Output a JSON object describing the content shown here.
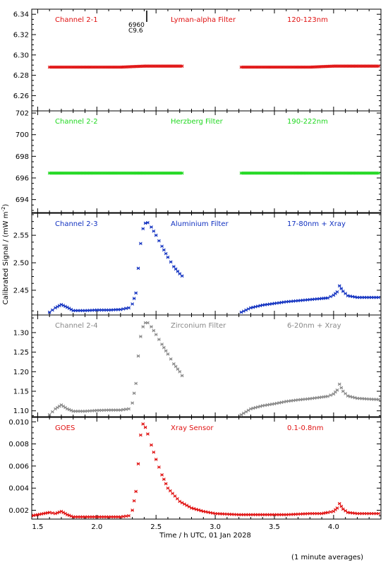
{
  "figure": {
    "ylabel": "Calibrated Signal / (mW m",
    "ylabel_sup": "-2",
    "ylabel_tail": ")",
    "xlabel": "Time / h UTC, 01 Jan 2028",
    "footnote": "(1 minute averages)",
    "event_number": "6960",
    "event_class": "C9.6"
  },
  "chart_data": [
    {
      "type": "scatter",
      "channel": "Channel 2-1",
      "filter": "Lyman-alpha Filter",
      "band": "120-123nm",
      "color": "#e01010",
      "ylim": [
        6.245,
        6.345
      ],
      "yticks": [
        6.26,
        6.28,
        6.3,
        6.32,
        6.34
      ],
      "ytick_labels": [
        "6.26",
        "6.28",
        "6.30",
        "6.32",
        "6.34"
      ],
      "xlim": [
        1.45,
        4.4
      ],
      "segments": [
        {
          "x": [
            1.6,
            1.8,
            2.0,
            2.2,
            2.4,
            2.6,
            2.72
          ],
          "y": [
            6.288,
            6.288,
            6.288,
            6.288,
            6.289,
            6.289,
            6.289
          ]
        },
        {
          "x": [
            3.22,
            3.4,
            3.6,
            3.8,
            4.0,
            4.2,
            4.38
          ],
          "y": [
            6.288,
            6.288,
            6.288,
            6.288,
            6.289,
            6.289,
            6.289
          ]
        }
      ]
    },
    {
      "type": "scatter",
      "channel": "Channel 2-2",
      "filter": "Herzberg Filter",
      "band": "190-222nm",
      "color": "#20d820",
      "ylim": [
        692.8,
        702.2
      ],
      "yticks": [
        694,
        696,
        698,
        700,
        702
      ],
      "ytick_labels": [
        "694",
        "696",
        "698",
        "700",
        "702"
      ],
      "xlim": [
        1.45,
        4.4
      ],
      "segments": [
        {
          "x": [
            1.6,
            1.8,
            2.0,
            2.2,
            2.4,
            2.6,
            2.72
          ],
          "y": [
            696.45,
            696.45,
            696.45,
            696.45,
            696.45,
            696.45,
            696.45
          ]
        },
        {
          "x": [
            3.22,
            3.4,
            3.6,
            3.8,
            4.0,
            4.2,
            4.38
          ],
          "y": [
            696.45,
            696.45,
            696.45,
            696.45,
            696.45,
            696.45,
            696.45
          ]
        }
      ]
    },
    {
      "type": "scatter",
      "channel": "Channel 2-3",
      "filter": "Aluminium Filter",
      "band": "17-80nm + Xray",
      "color": "#1030c0",
      "ylim": [
        2.405,
        2.59
      ],
      "yticks": [
        2.45,
        2.5,
        2.55
      ],
      "ytick_labels": [
        "2.45",
        "2.50",
        "2.55"
      ],
      "xlim": [
        1.45,
        4.4
      ],
      "segments": [
        {
          "x": [
            1.6,
            1.65,
            1.7,
            1.75,
            1.8,
            1.9,
            2.0,
            2.1,
            2.2,
            2.27,
            2.3,
            2.33,
            2.35,
            2.37,
            2.39,
            2.41,
            2.43,
            2.46,
            2.5,
            2.55,
            2.6,
            2.65,
            2.7,
            2.72
          ],
          "y": [
            2.41,
            2.418,
            2.424,
            2.419,
            2.413,
            2.413,
            2.414,
            2.414,
            2.415,
            2.418,
            2.425,
            2.445,
            2.49,
            2.535,
            2.562,
            2.572,
            2.573,
            2.565,
            2.55,
            2.53,
            2.51,
            2.493,
            2.48,
            2.476
          ]
        },
        {
          "x": [
            3.22,
            3.3,
            3.4,
            3.5,
            3.6,
            3.7,
            3.8,
            3.9,
            3.95,
            4.0,
            4.03,
            4.05,
            4.08,
            4.12,
            4.2,
            4.3,
            4.38
          ],
          "y": [
            2.41,
            2.418,
            2.423,
            2.426,
            2.429,
            2.431,
            2.433,
            2.435,
            2.436,
            2.441,
            2.447,
            2.458,
            2.448,
            2.44,
            2.437,
            2.437,
            2.437
          ]
        }
      ]
    },
    {
      "type": "scatter",
      "channel": "Channel 2-4",
      "filter": "Zirconium Filter",
      "band": "6-20nm + Xray",
      "color": "#888888",
      "ylim": [
        1.085,
        1.345
      ],
      "yticks": [
        1.1,
        1.15,
        1.2,
        1.25,
        1.3
      ],
      "ytick_labels": [
        "1.10",
        "1.15",
        "1.20",
        "1.25",
        "1.30"
      ],
      "xlim": [
        1.45,
        4.4
      ],
      "segments": [
        {
          "x": [
            1.6,
            1.65,
            1.7,
            1.75,
            1.8,
            1.9,
            2.0,
            2.1,
            2.2,
            2.27,
            2.3,
            2.33,
            2.35,
            2.37,
            2.39,
            2.41,
            2.43,
            2.46,
            2.5,
            2.55,
            2.6,
            2.65,
            2.7,
            2.72
          ],
          "y": [
            1.09,
            1.105,
            1.115,
            1.105,
            1.099,
            1.099,
            1.101,
            1.102,
            1.102,
            1.105,
            1.12,
            1.17,
            1.24,
            1.29,
            1.315,
            1.325,
            1.325,
            1.315,
            1.295,
            1.27,
            1.245,
            1.22,
            1.2,
            1.19
          ]
        },
        {
          "x": [
            3.22,
            3.3,
            3.4,
            3.5,
            3.6,
            3.7,
            3.8,
            3.9,
            3.95,
            4.0,
            4.03,
            4.05,
            4.08,
            4.12,
            4.2,
            4.3,
            4.38
          ],
          "y": [
            1.09,
            1.105,
            1.113,
            1.118,
            1.124,
            1.128,
            1.131,
            1.135,
            1.137,
            1.143,
            1.153,
            1.168,
            1.15,
            1.138,
            1.132,
            1.13,
            1.129
          ]
        }
      ]
    },
    {
      "type": "scatter",
      "channel": "GOES",
      "filter": "Xray Sensor",
      "band": "0.1-0.8nm",
      "color": "#e01010",
      "ylim": [
        0.0012,
        0.0104
      ],
      "yticks": [
        0.002,
        0.004,
        0.006,
        0.008,
        0.01
      ],
      "ytick_labels": [
        "0.002",
        "0.004",
        "0.006",
        "0.008",
        "0.010"
      ],
      "xlim": [
        1.45,
        4.4
      ],
      "xticks": [
        1.5,
        2.0,
        2.5,
        3.0,
        3.5,
        4.0
      ],
      "xtick_labels": [
        "1.5",
        "2.0",
        "2.5",
        "3.0",
        "3.5",
        "4.0"
      ],
      "segments": [
        {
          "x": [
            1.45,
            1.5,
            1.55,
            1.6,
            1.65,
            1.7,
            1.75,
            1.8,
            1.9,
            2.0,
            2.1,
            2.2,
            2.27,
            2.3,
            2.33,
            2.35,
            2.37,
            2.39,
            2.41,
            2.43,
            2.46,
            2.5,
            2.55,
            2.6,
            2.7,
            2.8,
            2.9,
            3.0,
            3.2,
            3.4,
            3.6,
            3.8,
            3.9,
            3.95,
            4.0,
            4.03,
            4.05,
            4.08,
            4.12,
            4.2,
            4.3,
            4.38
          ],
          "y": [
            0.0015,
            0.0016,
            0.0017,
            0.0018,
            0.0017,
            0.0019,
            0.0016,
            0.0014,
            0.0014,
            0.0014,
            0.0014,
            0.0014,
            0.0015,
            0.002,
            0.0037,
            0.0062,
            0.0088,
            0.0098,
            0.0095,
            0.0089,
            0.0079,
            0.0066,
            0.0052,
            0.004,
            0.0028,
            0.0022,
            0.0019,
            0.0017,
            0.0016,
            0.0016,
            0.0016,
            0.0017,
            0.0017,
            0.0018,
            0.0019,
            0.0022,
            0.0026,
            0.0021,
            0.0018,
            0.0017,
            0.0017,
            0.0017
          ]
        }
      ]
    }
  ]
}
